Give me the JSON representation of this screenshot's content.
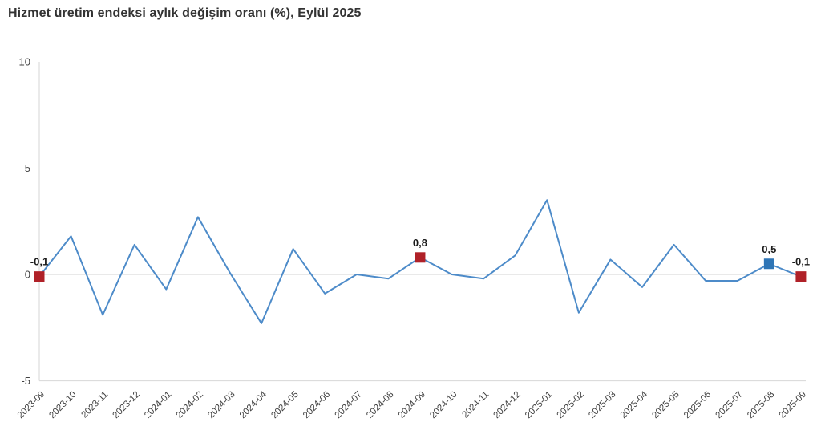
{
  "title": "Hizmet üretim endeksi aylık değişim oranı (%), Eylül 2025",
  "chart_data": {
    "type": "line",
    "title": "Hizmet üretim endeksi aylık değişim oranı (%), Eylül 2025",
    "xlabel": "",
    "ylabel": "",
    "ylim": [
      -5,
      10
    ],
    "yticks": [
      10,
      5,
      0,
      -5
    ],
    "grid": "horizontal line at 0 and baseline at -5 only",
    "legend": "none",
    "line_color": "#4d8bc9",
    "categories": [
      "2023-09",
      "2023-10",
      "2023-11",
      "2023-12",
      "2024-01",
      "2024-02",
      "2024-03",
      "2024-04",
      "2024-05",
      "2024-06",
      "2024-07",
      "2024-08",
      "2024-09",
      "2024-10",
      "2024-11",
      "2024-12",
      "2025-01",
      "2025-02",
      "2025-03",
      "2025-04",
      "2025-05",
      "2025-06",
      "2025-07",
      "2025-08",
      "2025-09"
    ],
    "values": [
      -0.1,
      1.8,
      -1.9,
      1.4,
      -0.7,
      2.7,
      0.1,
      -2.3,
      1.2,
      -0.9,
      0.0,
      -0.2,
      0.8,
      0.0,
      -0.2,
      0.9,
      3.5,
      -1.8,
      0.7,
      -0.6,
      1.4,
      -0.3,
      -0.3,
      0.5,
      -0.1
    ],
    "highlighted_points": [
      {
        "category": "2023-09",
        "value": -0.1,
        "label": "-0,1",
        "marker": "square",
        "color": "#b02128"
      },
      {
        "category": "2024-09",
        "value": 0.8,
        "label": "0,8",
        "marker": "square",
        "color": "#b02128"
      },
      {
        "category": "2025-08",
        "value": 0.5,
        "label": "0,5",
        "marker": "square",
        "color": "#2e75b6"
      },
      {
        "category": "2025-09",
        "value": -0.1,
        "label": "-0,1",
        "marker": "square",
        "color": "#b02128"
      }
    ]
  }
}
